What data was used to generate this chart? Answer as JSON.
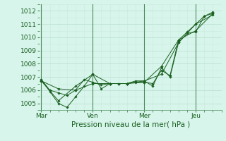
{
  "background_color": "#d8f5ec",
  "grid_color_major": "#b8dece",
  "grid_color_minor": "#cceadc",
  "line_color": "#1a6020",
  "vline_color": "#4a8a5a",
  "title": "Pression niveau de la mer( hPa )",
  "x_ticks_labels": [
    "Mar",
    "Ven",
    "Mer",
    "Jeu"
  ],
  "x_ticks_pos": [
    0.0,
    3.0,
    6.0,
    9.0
  ],
  "ylim": [
    1004.5,
    1012.5
  ],
  "yticks": [
    1005,
    1006,
    1007,
    1008,
    1009,
    1010,
    1011,
    1012
  ],
  "xlim": [
    -0.1,
    10.5
  ],
  "series": [
    {
      "x": [
        0,
        0.5,
        1.0,
        1.5,
        2.0,
        2.5,
        3.0,
        3.5,
        4.0,
        4.5,
        5.0,
        5.5,
        6.0,
        6.5,
        7.0,
        7.5,
        8.0,
        8.5,
        9.0,
        9.5,
        10.0
      ],
      "y": [
        1006.8,
        1005.9,
        1005.0,
        1004.7,
        1005.5,
        1006.3,
        1007.2,
        1006.1,
        1006.5,
        1006.5,
        1006.5,
        1006.7,
        1006.7,
        1006.3,
        1007.7,
        1007.0,
        1009.6,
        1010.3,
        1010.4,
        1011.6,
        1011.8
      ]
    },
    {
      "x": [
        0,
        0.5,
        1.0,
        1.5,
        2.0,
        2.5,
        3.0,
        3.5,
        4.0,
        4.5,
        5.0,
        5.5,
        6.0,
        6.5,
        7.0,
        7.5,
        8.0,
        8.5,
        9.0,
        9.5,
        10.0
      ],
      "y": [
        1006.8,
        1006.0,
        1005.8,
        1005.6,
        1006.0,
        1006.8,
        1006.6,
        1006.4,
        1006.5,
        1006.5,
        1006.5,
        1006.6,
        1006.6,
        1006.5,
        1007.5,
        1007.1,
        1009.8,
        1010.4,
        1011.0,
        1011.6,
        1011.9
      ]
    },
    {
      "x": [
        0,
        1.0,
        2.0,
        3.0,
        4.0,
        5.0,
        6.0,
        7.0,
        8.0,
        9.0,
        10.0
      ],
      "y": [
        1006.7,
        1005.2,
        1006.3,
        1007.2,
        1006.5,
        1006.5,
        1006.7,
        1007.2,
        1009.6,
        1011.0,
        1011.7
      ]
    },
    {
      "x": [
        0,
        1.0,
        2.0,
        3.0,
        4.0,
        5.0,
        6.0,
        7.0,
        8.0,
        9.0,
        10.0
      ],
      "y": [
        1006.7,
        1006.1,
        1006.0,
        1006.5,
        1006.5,
        1006.5,
        1006.6,
        1007.8,
        1009.8,
        1010.5,
        1011.8
      ]
    }
  ],
  "vlines_x": [
    0.0,
    3.0,
    6.0,
    9.0
  ],
  "title_fontsize": 7.5,
  "tick_fontsize": 6.5,
  "xlabel_fontsize": 7.5
}
